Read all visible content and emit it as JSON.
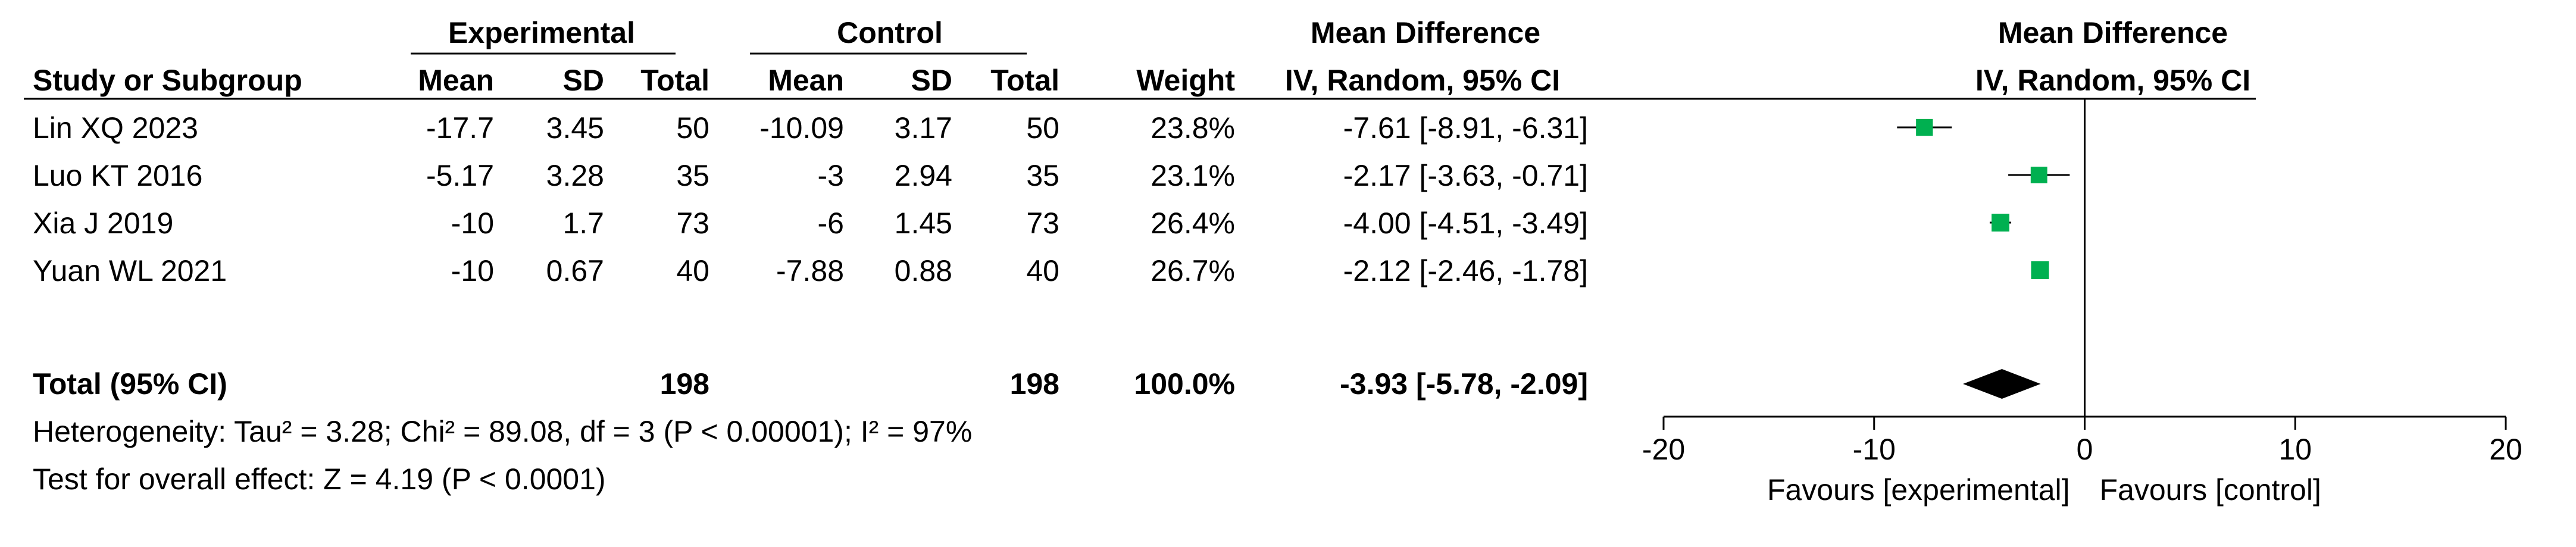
{
  "headers": {
    "group_experimental": "Experimental",
    "group_control": "Control",
    "effect_title": "Mean Difference",
    "effect_method": "IV, Random, 95% CI",
    "plot_title": "Mean Difference",
    "plot_method": "IV, Random, 95% CI",
    "study": "Study or Subgroup",
    "mean": "Mean",
    "sd": "SD",
    "total": "Total",
    "weight": "Weight"
  },
  "studies": [
    {
      "name": "Lin XQ 2023",
      "exp_mean": "-17.7",
      "exp_sd": "3.45",
      "exp_total": "50",
      "ctrl_mean": "-10.09",
      "ctrl_sd": "3.17",
      "ctrl_total": "50",
      "weight": "23.8%",
      "ci_text": "-7.61 [-8.91, -6.31]"
    },
    {
      "name": "Luo KT 2016",
      "exp_mean": "-5.17",
      "exp_sd": "3.28",
      "exp_total": "35",
      "ctrl_mean": "-3",
      "ctrl_sd": "2.94",
      "ctrl_total": "35",
      "weight": "23.1%",
      "ci_text": "-2.17 [-3.63, -0.71]"
    },
    {
      "name": "Xia J 2019",
      "exp_mean": "-10",
      "exp_sd": "1.7",
      "exp_total": "73",
      "ctrl_mean": "-6",
      "ctrl_sd": "1.45",
      "ctrl_total": "73",
      "weight": "26.4%",
      "ci_text": "-4.00 [-4.51, -3.49]"
    },
    {
      "name": "Yuan WL 2021",
      "exp_mean": "-10",
      "exp_sd": "0.67",
      "exp_total": "40",
      "ctrl_mean": "-7.88",
      "ctrl_sd": "0.88",
      "ctrl_total": "40",
      "weight": "26.7%",
      "ci_text": "-2.12 [-2.46, -1.78]"
    }
  ],
  "total": {
    "label": "Total (95% CI)",
    "exp_total": "198",
    "ctrl_total": "198",
    "weight": "100.0%",
    "ci_text": "-3.93 [-5.78, -2.09]"
  },
  "heterogeneity": "Heterogeneity: Tau² = 3.28; Chi² = 89.08, df = 3 (P < 0.00001); I² = 97%",
  "overall_effect": "Test for overall effect: Z = 4.19 (P < 0.0001)",
  "chart_data": {
    "type": "forest",
    "x_ticks": [
      -20,
      -10,
      0,
      10,
      20
    ],
    "x_tick_labels": [
      "-20",
      "-10",
      "0",
      "10",
      "20"
    ],
    "xlim": [
      -20,
      20
    ],
    "xlabel_left": "Favours [experimental]",
    "xlabel_right": "Favours [control]",
    "point_color": "#00b050",
    "diamond_color": "#000000",
    "studies": [
      {
        "name": "Lin XQ 2023",
        "md": -7.61,
        "lo": -8.91,
        "hi": -6.31,
        "weight": 23.8
      },
      {
        "name": "Luo KT 2016",
        "md": -2.17,
        "lo": -3.63,
        "hi": -0.71,
        "weight": 23.1
      },
      {
        "name": "Xia J 2019",
        "md": -4.0,
        "lo": -4.51,
        "hi": -3.49,
        "weight": 26.4
      },
      {
        "name": "Yuan WL 2021",
        "md": -2.12,
        "lo": -2.46,
        "hi": -1.78,
        "weight": 26.7
      }
    ],
    "pooled": {
      "md": -3.93,
      "lo": -5.78,
      "hi": -2.09
    }
  }
}
